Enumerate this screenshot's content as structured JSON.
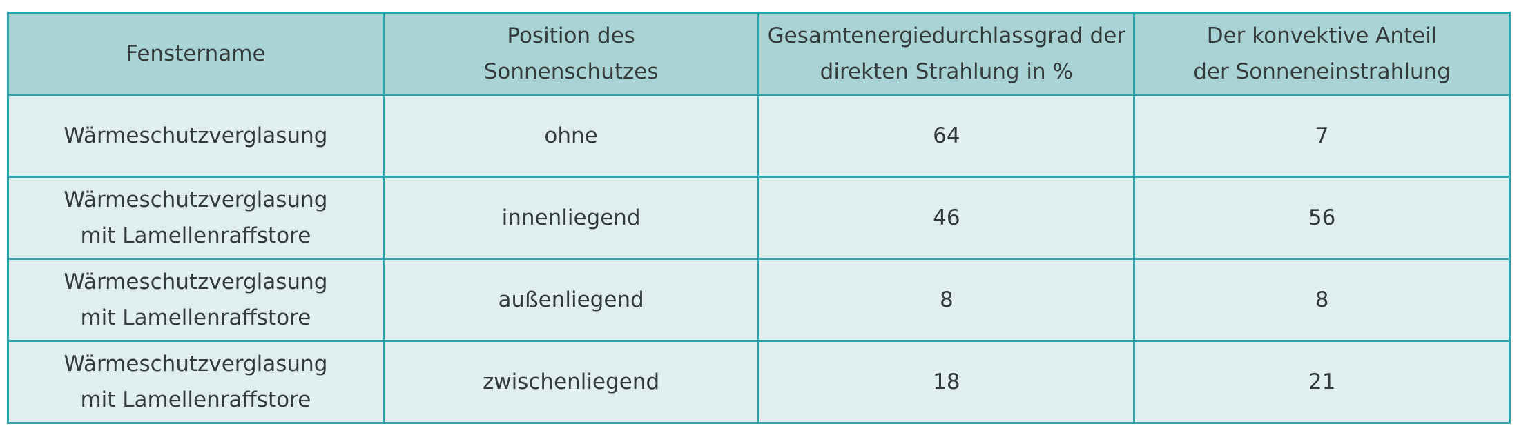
{
  "table": {
    "headers": [
      [
        "Fenstername"
      ],
      [
        "Position des",
        "Sonnenschutzes"
      ],
      [
        "Gesamtenergiedurchlassgrad der",
        "direkten Strahlung in %"
      ],
      [
        "Der konvektive Anteil",
        "der Sonneneinstrahlung"
      ]
    ],
    "rows": [
      {
        "name": [
          "Wärmeschutzverglasung"
        ],
        "position": "ohne",
        "g_value": "64",
        "convective": "7"
      },
      {
        "name": [
          "Wärmeschutzverglasung",
          "mit Lamellenraffstore"
        ],
        "position": "innenliegend",
        "g_value": "46",
        "convective": "56"
      },
      {
        "name": [
          "Wärmeschutzverglasung",
          "mit Lamellenraffstore"
        ],
        "position": "außenliegend",
        "g_value": "8",
        "convective": "8"
      },
      {
        "name": [
          "Wärmeschutzverglasung",
          "mit Lamellenraffstore"
        ],
        "position": "zwischenliegend",
        "g_value": "18",
        "convective": "21"
      }
    ]
  }
}
